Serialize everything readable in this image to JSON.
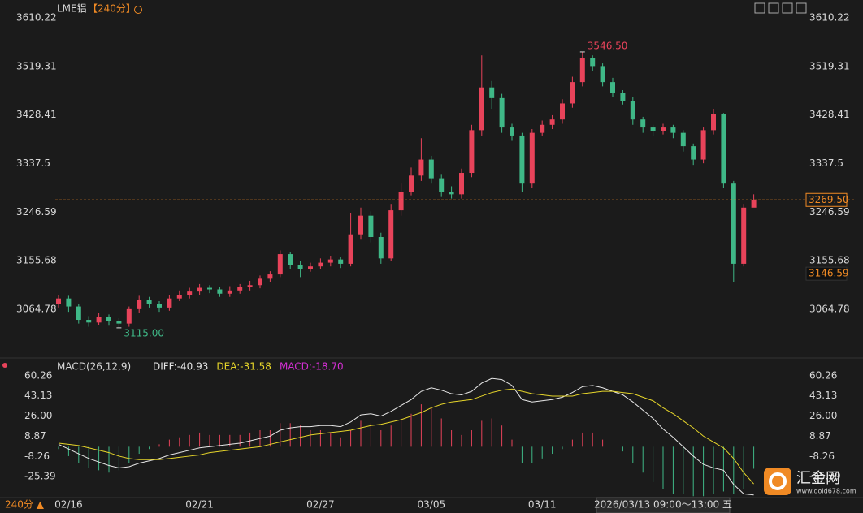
{
  "header": {
    "symbol": "LME铝",
    "period": "【240分】"
  },
  "chart_data": [
    {
      "type": "candlestick",
      "up_color": "#e8435a",
      "down_color": "#3fb887",
      "categories": [
        null,
        "02/16",
        null,
        null,
        null,
        null,
        null,
        null,
        null,
        null,
        null,
        null,
        null,
        null,
        "02/21",
        null,
        null,
        null,
        null,
        null,
        null,
        null,
        null,
        null,
        null,
        null,
        "02/27",
        null,
        null,
        null,
        null,
        null,
        null,
        null,
        null,
        null,
        null,
        "03/05",
        null,
        null,
        null,
        null,
        null,
        null,
        null,
        null,
        null,
        null,
        "03/11",
        null,
        null,
        null,
        null,
        null,
        null,
        null,
        null,
        null,
        null,
        null,
        null,
        null,
        null,
        null,
        null,
        null,
        null,
        null,
        null,
        null
      ],
      "open": [
        3075,
        3085,
        3070,
        3045,
        3040,
        3050,
        3042,
        3038,
        3065,
        3082,
        3075,
        3068,
        3085,
        3092,
        3098,
        3105,
        3102,
        3094,
        3100,
        3106,
        3110,
        3122,
        3130,
        3168,
        3148,
        3140,
        3145,
        3152,
        3158,
        3150,
        3205,
        3240,
        3200,
        3160,
        3250,
        3285,
        3315,
        3345,
        3310,
        3285,
        3280,
        3320,
        3400,
        3480,
        3460,
        3405,
        3390,
        3300,
        3395,
        3410,
        3420,
        3450,
        3490,
        3535,
        3520,
        3490,
        3470,
        3455,
        3420,
        3405,
        3398,
        3405,
        3395,
        3370,
        3345,
        3400,
        3430,
        3300,
        3150,
        3255
      ],
      "high": [
        3092,
        3090,
        3074,
        3052,
        3058,
        3055,
        3048,
        3070,
        3090,
        3088,
        3080,
        3092,
        3100,
        3105,
        3112,
        3110,
        3106,
        3108,
        3112,
        3118,
        3128,
        3136,
        3175,
        3172,
        3155,
        3152,
        3160,
        3165,
        3162,
        3245,
        3255,
        3248,
        3208,
        3262,
        3300,
        3330,
        3385,
        3352,
        3318,
        3295,
        3328,
        3410,
        3540,
        3492,
        3468,
        3412,
        3395,
        3402,
        3418,
        3428,
        3458,
        3500,
        3546.5,
        3540,
        3525,
        3498,
        3475,
        3462,
        3425,
        3410,
        3412,
        3410,
        3400,
        3375,
        3405,
        3440,
        3432,
        3305,
        3262,
        3280
      ],
      "low": [
        3068,
        3060,
        3038,
        3032,
        3035,
        3034,
        3030,
        3032,
        3058,
        3068,
        3060,
        3062,
        3080,
        3085,
        3092,
        3095,
        3088,
        3088,
        3094,
        3100,
        3104,
        3115,
        3125,
        3140,
        3125,
        3135,
        3140,
        3145,
        3142,
        3145,
        3195,
        3190,
        3150,
        3155,
        3240,
        3278,
        3305,
        3300,
        3275,
        3272,
        3272,
        3312,
        3390,
        3440,
        3395,
        3380,
        3285,
        3292,
        3390,
        3402,
        3412,
        3442,
        3482,
        3510,
        3482,
        3462,
        3448,
        3410,
        3395,
        3390,
        3392,
        3385,
        3360,
        3335,
        3338,
        3392,
        3292,
        3115,
        3145,
        3258
      ],
      "close": [
        3085,
        3070,
        3045,
        3040,
        3050,
        3042,
        3038,
        3065,
        3082,
        3075,
        3068,
        3085,
        3092,
        3098,
        3105,
        3102,
        3094,
        3100,
        3106,
        3110,
        3122,
        3130,
        3168,
        3148,
        3140,
        3145,
        3152,
        3158,
        3150,
        3205,
        3240,
        3200,
        3160,
        3250,
        3285,
        3315,
        3345,
        3310,
        3285,
        3280,
        3320,
        3400,
        3480,
        3460,
        3405,
        3390,
        3300,
        3395,
        3410,
        3420,
        3450,
        3490,
        3535,
        3520,
        3490,
        3470,
        3455,
        3420,
        3405,
        3398,
        3405,
        3395,
        3370,
        3345,
        3400,
        3430,
        3300,
        3150,
        3255,
        3269.5
      ],
      "ylim": [
        2975.14,
        3628.45
      ],
      "yticks": [
        3064.78,
        3155.68,
        3246.59,
        3337.5,
        3428.41,
        3519.31,
        3610.22
      ],
      "extreme_labels": {
        "high": "3546.50",
        "low": "3115.00"
      },
      "last_price": {
        "value": 3269.5,
        "label": "3269.50"
      },
      "marker_price": 3146.59
    },
    {
      "type": "macd",
      "title": "MACD(26,12,9)",
      "series": [
        {
          "name": "DIFF:-40.93",
          "color": "#e8e8e8",
          "kind": "line",
          "values": [
            2,
            -2,
            -6,
            -10,
            -13,
            -16,
            -18,
            -17,
            -14,
            -12,
            -10,
            -7,
            -5,
            -3,
            -1,
            0,
            1,
            2,
            3,
            5,
            7,
            9,
            14,
            16,
            17,
            17,
            18,
            18,
            17,
            21,
            27,
            28,
            26,
            30,
            35,
            40,
            47,
            50,
            48,
            45,
            44,
            47,
            54,
            58,
            57,
            52,
            40,
            38,
            39,
            40,
            42,
            46,
            51,
            52,
            50,
            47,
            44,
            38,
            31,
            24,
            15,
            8,
            0,
            -8,
            -15,
            -18,
            -20,
            -32,
            -40,
            -40.93
          ]
        },
        {
          "name": "DEA:-31.58",
          "color": "#e6d52a",
          "kind": "line",
          "values": [
            3,
            2,
            1,
            -1,
            -3,
            -5,
            -8,
            -10,
            -11,
            -11,
            -11,
            -10,
            -9,
            -8,
            -7,
            -5,
            -4,
            -3,
            -2,
            -1,
            0,
            2,
            4,
            6,
            8,
            10,
            11,
            12,
            13,
            14,
            16,
            18,
            19,
            21,
            23,
            26,
            29,
            33,
            36,
            38,
            39,
            40,
            43,
            46,
            48,
            49,
            47,
            45,
            44,
            43,
            43,
            43,
            45,
            46,
            47,
            47,
            46,
            45,
            42,
            39,
            33,
            28,
            22,
            16,
            9,
            4,
            -1,
            -10,
            -22,
            -31.58
          ]
        },
        {
          "name": "MACD:-18.70",
          "color": "#d42fd4",
          "kind": "histogram",
          "up_color": "#e8435a",
          "down_color": "#3fb887",
          "values": [
            -2,
            -8,
            -14,
            -18,
            -20,
            -22,
            -20,
            -14,
            -6,
            -2,
            2,
            6,
            8,
            10,
            12,
            10,
            10,
            10,
            10,
            12,
            14,
            14,
            20,
            20,
            18,
            14,
            14,
            12,
            8,
            14,
            22,
            20,
            14,
            18,
            24,
            28,
            36,
            34,
            24,
            14,
            10,
            14,
            22,
            24,
            18,
            6,
            -14,
            -14,
            -10,
            -6,
            -2,
            6,
            12,
            12,
            6,
            0,
            -4,
            -14,
            -22,
            -30,
            -36,
            -40,
            -40,
            -42,
            -42,
            -40,
            -38,
            -40,
            -36,
            -18.7
          ]
        }
      ],
      "ylim": [
        -42.5,
        65.7
      ],
      "yticks": [
        -25.39,
        -8.26,
        8.87,
        {
          "value": 26,
          "label": "26.00"
        },
        43.13,
        60.26
      ]
    }
  ],
  "footer": {
    "period": "240分 ▲",
    "current_bar": "2026/03/13 09:00～13:00 五"
  },
  "watermark": {
    "name": "汇金网",
    "url": "www.gold678.com"
  }
}
